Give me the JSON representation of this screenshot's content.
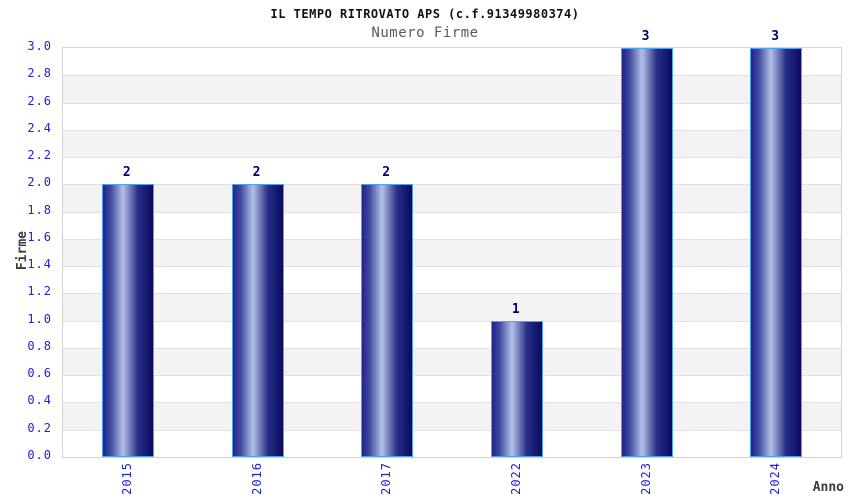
{
  "chart_data": {
    "type": "bar",
    "title": "IL TEMPO RITROVATO APS (c.f.91349980374)",
    "subtitle": "Numero Firme",
    "categories": [
      "2015",
      "2016",
      "2017",
      "2022",
      "2023",
      "2024"
    ],
    "values": [
      2,
      2,
      2,
      1,
      3,
      3
    ],
    "xlabel": "Anno",
    "ylabel": "Firme",
    "ylim": [
      0.0,
      3.0
    ],
    "ytick_step": 0.2,
    "yticks": [
      "0.0",
      "0.2",
      "0.4",
      "0.6",
      "0.8",
      "1.0",
      "1.2",
      "1.4",
      "1.6",
      "1.8",
      "2.0",
      "2.2",
      "2.4",
      "2.6",
      "2.8",
      "3.0"
    ],
    "legend": "none",
    "grid": "horizontal-bands",
    "x_tick_rotation": 90,
    "colors": {
      "tick_blue": "#2121d4",
      "value_navy": "#00006e",
      "axis_label_gray": "#3c3c3c",
      "title_black": "#111111",
      "subtitle_gray": "#5a5a5a",
      "band_white": "#ffffff",
      "band_gray": "#f3f3f3",
      "gridline": "#e2e2e2",
      "plot_border": "#d2d2d2",
      "bar_border": "#4ea3f1",
      "bar_gradient": [
        "#23238a 0%",
        "#3d4a9f 15%",
        "#b4c0e6 40%",
        "#272e86 70%",
        "#0a0a60 100%"
      ]
    }
  }
}
